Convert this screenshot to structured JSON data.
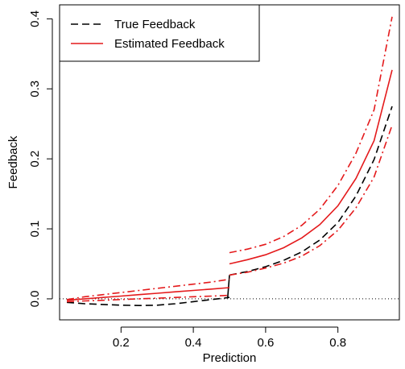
{
  "chart_data": {
    "type": "line",
    "xlabel": "Prediction",
    "ylabel": "Feedback",
    "xlim": [
      0.03,
      0.97
    ],
    "ylim": [
      -0.03,
      0.42
    ],
    "xticks": [
      0.2,
      0.4,
      0.6,
      0.8
    ],
    "xtick_labels": [
      "0.2",
      "0.4",
      "0.6",
      "0.8"
    ],
    "yticks": [
      0.0,
      0.1,
      0.2,
      0.3,
      0.4
    ],
    "ytick_labels": [
      "0.0",
      "0.1",
      "0.2",
      "0.3",
      "0.4"
    ],
    "reference_line": {
      "y": 0.0,
      "style": "dotted"
    },
    "legend": {
      "position": "top-left",
      "entries": [
        {
          "label": "True Feedback",
          "color": "#000000",
          "style": "dashed"
        },
        {
          "label": "Estimated Feedback",
          "color": "#e41a1c",
          "style": "solid"
        }
      ]
    },
    "series": [
      {
        "name": "True Feedback",
        "color": "#000000",
        "style": "dashed",
        "segments": [
          {
            "x": [
              0.05,
              0.1,
              0.15,
              0.2,
              0.25,
              0.3,
              0.35,
              0.4,
              0.45,
              0.5
            ],
            "y": [
              -0.005,
              -0.007,
              -0.008,
              -0.009,
              -0.0095,
              -0.009,
              -0.007,
              -0.004,
              -0.001,
              0.002
            ]
          },
          {
            "x": [
              0.5,
              0.55,
              0.6,
              0.65,
              0.7,
              0.75,
              0.8,
              0.85,
              0.9,
              0.95
            ],
            "y": [
              0.034,
              0.039,
              0.046,
              0.055,
              0.067,
              0.084,
              0.109,
              0.147,
              0.199,
              0.275
            ]
          }
        ]
      },
      {
        "color": "#000000",
        "style": "solid",
        "segments": [
          {
            "x": [
              0.495,
              0.5
            ],
            "y": [
              0.002,
              0.034
            ]
          }
        ]
      },
      {
        "name": "Estimated Feedback",
        "color": "#e41a1c",
        "style": "solid",
        "segments": [
          {
            "x": [
              0.05,
              0.1,
              0.15,
              0.2,
              0.25,
              0.3,
              0.35,
              0.4,
              0.45,
              0.5
            ],
            "y": [
              -0.002,
              0.0,
              0.002,
              0.004,
              0.006,
              0.008,
              0.01,
              0.012,
              0.014,
              0.016
            ]
          },
          {
            "x": [
              0.5,
              0.55,
              0.6,
              0.65,
              0.7,
              0.75,
              0.8,
              0.85,
              0.9,
              0.95
            ],
            "y": [
              0.05,
              0.056,
              0.063,
              0.073,
              0.087,
              0.106,
              0.133,
              0.172,
              0.226,
              0.327
            ]
          }
        ]
      },
      {
        "color": "#e41a1c",
        "style": "dashdot",
        "segments": [
          {
            "x": [
              0.05,
              0.1,
              0.15,
              0.2,
              0.25,
              0.3,
              0.35,
              0.4,
              0.45,
              0.5
            ],
            "y": [
              -0.001,
              0.003,
              0.006,
              0.009,
              0.012,
              0.015,
              0.018,
              0.021,
              0.024,
              0.028
            ]
          },
          {
            "x": [
              0.5,
              0.55,
              0.6,
              0.65,
              0.7,
              0.75,
              0.8,
              0.85,
              0.9,
              0.95
            ],
            "y": [
              0.066,
              0.071,
              0.078,
              0.089,
              0.105,
              0.128,
              0.162,
              0.208,
              0.27,
              0.403
            ]
          }
        ]
      },
      {
        "color": "#e41a1c",
        "style": "dashdot",
        "segments": [
          {
            "x": [
              0.05,
              0.1,
              0.15,
              0.2,
              0.25,
              0.3,
              0.35,
              0.4,
              0.45,
              0.5
            ],
            "y": [
              -0.004,
              -0.003,
              -0.002,
              -0.001,
              0.0,
              0.001,
              0.002,
              0.003,
              0.004,
              0.005
            ]
          },
          {
            "x": [
              0.5,
              0.55,
              0.6,
              0.65,
              0.7,
              0.75,
              0.8,
              0.85,
              0.9,
              0.95
            ],
            "y": [
              0.034,
              0.038,
              0.044,
              0.051,
              0.061,
              0.076,
              0.098,
              0.13,
              0.174,
              0.248
            ]
          }
        ]
      }
    ]
  }
}
